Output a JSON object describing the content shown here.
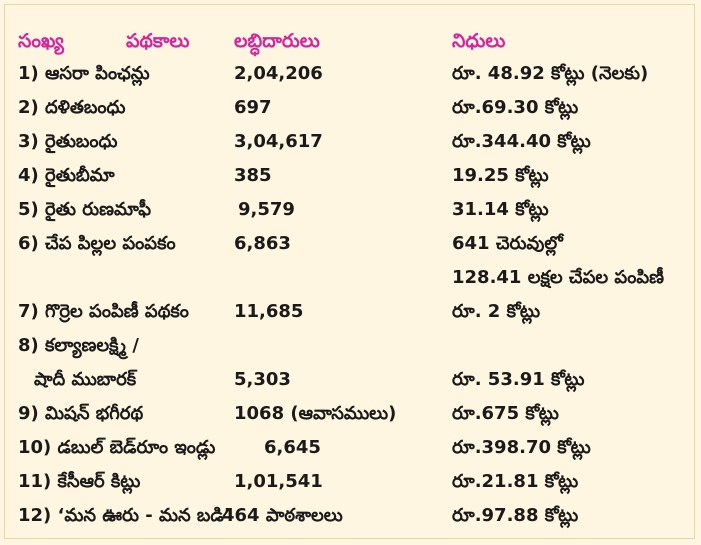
{
  "header": {
    "index": "సంఖ్య",
    "scheme": "పథకాలు",
    "beneficiaries": "లబ్ధిదారులు",
    "funds": "నిధులు"
  },
  "colors": {
    "header": "#d6249f",
    "text": "#1a1a1a",
    "background": "#fef6e0"
  },
  "rows": [
    {
      "scheme": "1) ఆసరా పింఛన్లు",
      "beneficiaries": "2,04,206",
      "funds": "రూ. 48.92 కోట్లు (నెలకు)"
    },
    {
      "scheme": "2) దళితబంధు",
      "beneficiaries": "697",
      "funds": "రూ.69.30 కోట్లు"
    },
    {
      "scheme": "3) రైతుబంధు",
      "beneficiaries": "3,04,617",
      "funds": "రూ.344.40 కోట్లు"
    },
    {
      "scheme": "4) రైతుబీమా",
      "beneficiaries": "385",
      "funds": "19.25 కోట్లు"
    },
    {
      "scheme": "5) రైతు రుణమాఫీ",
      "beneficiaries": "9,579",
      "funds": "31.14 కోట్లు"
    },
    {
      "scheme": "6) చేప పిల్లల పంపకం",
      "beneficiaries": "6,863",
      "funds": "641 చెరువుల్లో"
    },
    {
      "scheme": "",
      "beneficiaries": "",
      "funds": "128.41 లక్షల చేపల పంపిణీ"
    },
    {
      "scheme": "7) గొర్రెల పంపిణీ పథకం",
      "beneficiaries": "11,685",
      "funds": "రూ. 2 కోట్లు"
    },
    {
      "scheme": "8) కల్యాణలక్ష్మి /",
      "beneficiaries": "",
      "funds": ""
    },
    {
      "scheme": "   షాదీ ముబారక్",
      "beneficiaries": "5,303",
      "funds": "రూ. 53.91 కోట్లు"
    },
    {
      "scheme": "9) మిషన్ భగీరథ",
      "beneficiaries": "1068 (ఆవాసములు)",
      "funds": "రూ.675 కోట్లు"
    },
    {
      "scheme": "10) డబుల్ బెడ్‌రూం ఇండ్లు",
      "beneficiaries": "6,645",
      "funds": "రూ.398.70 కోట్లు"
    },
    {
      "scheme": "11) కేసీఆర్ కిట్లు",
      "beneficiaries": "1,01,541",
      "funds": "రూ.21.81 కోట్లు"
    },
    {
      "scheme": "12) ‘మన ఊరు - మన బడి’",
      "beneficiaries": "464 పాఠశాలలు",
      "funds": "రూ.97.88 కోట్లు"
    }
  ]
}
